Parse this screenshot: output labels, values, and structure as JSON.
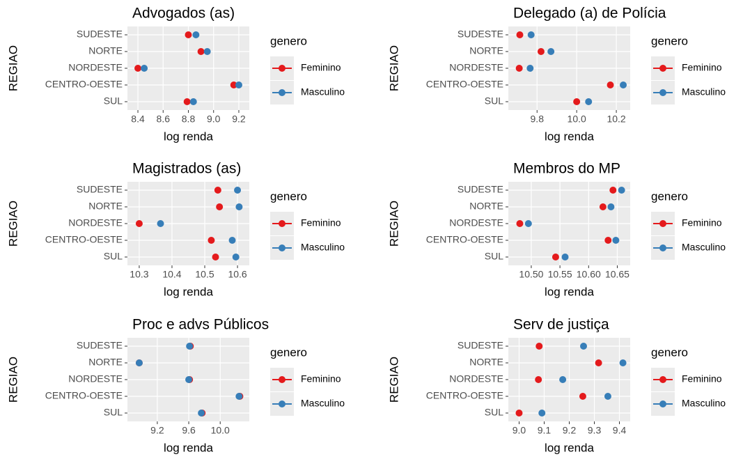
{
  "chart_data": [
    {
      "type": "dot",
      "title": "Advogados (as)",
      "x_label": "log renda",
      "y_label": "REGIAO",
      "legend_title": "genero",
      "legend": "right",
      "categories": [
        "SUDESTE",
        "NORTE",
        "NORDESTE",
        "CENTRO-OESTE",
        "SUL"
      ],
      "series": [
        {
          "name": "Feminino",
          "color": "#E41A1C",
          "values": [
            8.8,
            8.9,
            8.4,
            9.16,
            8.79
          ]
        },
        {
          "name": "Masculino",
          "color": "#377EB8",
          "values": [
            8.86,
            8.95,
            8.45,
            9.2,
            8.84
          ]
        }
      ],
      "xlim": [
        8.317,
        9.283
      ],
      "xticks": [
        {
          "value": 8.4,
          "label": "8.4"
        },
        {
          "value": 8.6,
          "label": "8.6"
        },
        {
          "value": 8.8,
          "label": "8.8"
        },
        {
          "value": 9.0,
          "label": "9.0"
        },
        {
          "value": 9.2,
          "label": "9.2"
        }
      ],
      "grid": true
    },
    {
      "type": "dot",
      "title": "Delegado (a) de Polícia",
      "x_label": "log renda",
      "y_label": "REGIAO",
      "legend_title": "genero",
      "legend": "right",
      "categories": [
        "SUDESTE",
        "NORTE",
        "NORDESTE",
        "CENTRO-OESTE",
        "SUL"
      ],
      "series": [
        {
          "name": "Feminino",
          "color": "#E41A1C",
          "values": [
            9.713,
            9.82,
            9.71,
            10.17,
            10.0
          ]
        },
        {
          "name": "Masculino",
          "color": "#377EB8",
          "values": [
            9.77,
            9.87,
            9.765,
            10.235,
            10.06
          ]
        }
      ],
      "xlim": [
        9.655,
        10.27
      ],
      "xticks": [
        {
          "value": 9.8,
          "label": "9.8"
        },
        {
          "value": 10.0,
          "label": "10.0"
        },
        {
          "value": 10.2,
          "label": "10.2"
        }
      ],
      "grid": true
    },
    {
      "type": "dot",
      "title": "Magistrados (as)",
      "x_label": "log renda",
      "y_label": "REGIAO",
      "legend_title": "genero",
      "legend": "right",
      "categories": [
        "SUDESTE",
        "NORTE",
        "NORDESTE",
        "CENTRO-OESTE",
        "SUL"
      ],
      "series": [
        {
          "name": "Feminino",
          "color": "#E41A1C",
          "values": [
            10.54,
            10.545,
            10.3,
            10.52,
            10.533
          ]
        },
        {
          "name": "Masculino",
          "color": "#377EB8",
          "values": [
            10.6,
            10.605,
            10.365,
            10.584,
            10.595
          ]
        }
      ],
      "xlim": [
        10.264,
        10.636
      ],
      "xticks": [
        10.3,
        10.4,
        10.5,
        10.6
      ],
      "grid": true
    },
    {
      "type": "dot",
      "title": "Membros do MP",
      "x_label": "log renda",
      "y_label": "REGIAO",
      "legend_title": "genero",
      "legend": "right",
      "categories": [
        "SUDESTE",
        "NORTE",
        "NORDESTE",
        "CENTRO-OESTE",
        "SUL"
      ],
      "series": [
        {
          "name": "Feminino",
          "color": "#E41A1C",
          "values": [
            10.6425,
            10.625,
            10.48,
            10.634,
            10.5425
          ]
        },
        {
          "name": "Masculino",
          "color": "#377EB8",
          "values": [
            10.6575,
            10.639,
            10.495,
            10.6475,
            10.559
          ]
        }
      ],
      "xlim": [
        10.46,
        10.6725
      ],
      "xticks": [
        {
          "value": 10.5,
          "label": "10.50"
        },
        {
          "value": 10.55,
          "label": "10.55"
        },
        {
          "value": 10.6,
          "label": "10.60"
        },
        10.65
      ],
      "grid": true
    },
    {
      "type": "dot",
      "title": "Proc e advs Públicos",
      "x_label": "log renda",
      "y_label": "REGIAO",
      "legend_title": "genero",
      "legend": "right",
      "categories": [
        "SUDESTE",
        "NORTE",
        "NORDESTE",
        "CENTRO-OESTE",
        "SUL"
      ],
      "series": [
        {
          "name": "Feminino",
          "color": "#E41A1C",
          "values": [
            9.62,
            8.97,
            9.61,
            10.25,
            9.77
          ]
        },
        {
          "name": "Masculino",
          "color": "#377EB8",
          "values": [
            9.61,
            8.97,
            9.6,
            10.24,
            9.76
          ]
        }
      ],
      "xlim": [
        8.82,
        10.37
      ],
      "xticks": [
        9.2,
        9.6,
        {
          "value": 10.0,
          "label": "10.0"
        }
      ],
      "grid": true
    },
    {
      "type": "dot",
      "title": "Serv de justiça",
      "x_label": "log renda",
      "y_label": "REGIAO",
      "legend_title": "genero",
      "legend": "right",
      "categories": [
        "SUDESTE",
        "NORTE",
        "NORDESTE",
        "CENTRO-OESTE",
        "SUL"
      ],
      "series": [
        {
          "name": "Feminino",
          "color": "#E41A1C",
          "values": [
            9.08,
            9.317,
            9.077,
            9.254,
            9.0
          ]
        },
        {
          "name": "Masculino",
          "color": "#377EB8",
          "values": [
            9.257,
            9.414,
            9.174,
            9.354,
            9.091
          ]
        }
      ],
      "xlim": [
        8.957,
        9.443
      ],
      "xticks": [
        {
          "value": 9.0,
          "label": "9.0"
        },
        9.1,
        9.2,
        9.3,
        9.4
      ],
      "grid": true
    }
  ]
}
